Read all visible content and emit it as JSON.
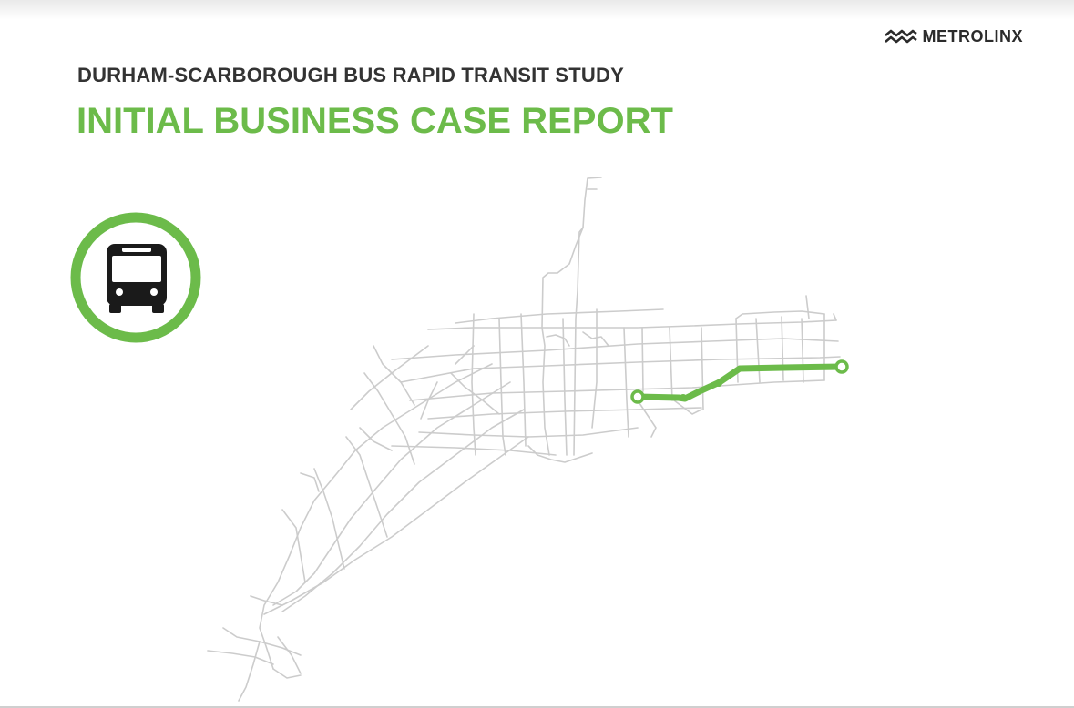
{
  "brand": {
    "logo_text": "METROLINX",
    "logo_icon": "wave-lines-icon"
  },
  "header": {
    "subtitle": "DURHAM-SCARBOROUGH BUS RAPID TRANSIT STUDY",
    "title": "INITIAL BUSINESS CASE REPORT"
  },
  "badge": {
    "icon": "bus-icon"
  },
  "colors": {
    "accent_green": "#6cbb4a",
    "text_dark": "#333333",
    "map_lines": "#cccccc"
  }
}
